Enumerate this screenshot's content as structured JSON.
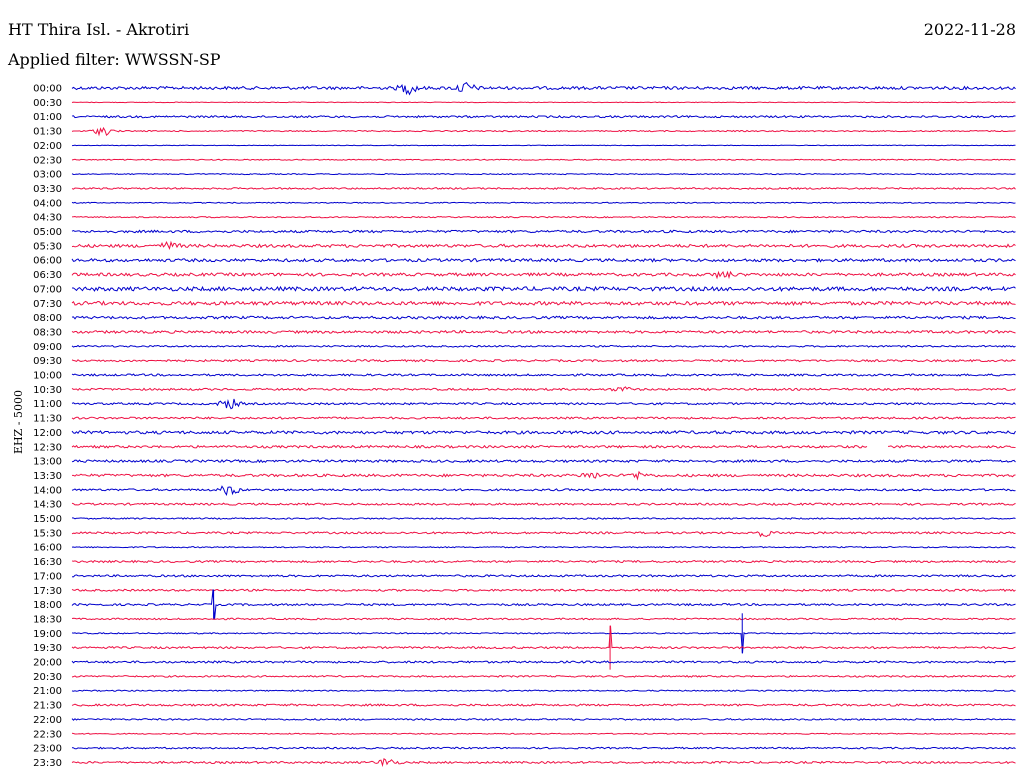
{
  "header": {
    "station": "HT Thira Isl. - Akrotiri",
    "date": "2022-11-28",
    "filter": "Applied filter: WWSSN-SP",
    "channel": "EHZ - 5000"
  },
  "chart_data": {
    "type": "line",
    "title": "HT Thira Isl. - Akrotiri",
    "colors": {
      "blue": "#0000cc",
      "red": "#ee1144"
    },
    "row_labels": [
      "00:00",
      "00:30",
      "01:00",
      "01:30",
      "02:00",
      "02:30",
      "03:00",
      "03:30",
      "04:00",
      "04:30",
      "05:00",
      "05:30",
      "06:00",
      "06:30",
      "07:00",
      "07:30",
      "08:00",
      "08:30",
      "09:00",
      "09:30",
      "10:00",
      "10:30",
      "11:00",
      "11:30",
      "12:00",
      "12:30",
      "13:00",
      "13:30",
      "14:00",
      "14:30",
      "15:00",
      "15:30",
      "16:00",
      "16:30",
      "17:00",
      "17:30",
      "18:00",
      "18:30",
      "19:00",
      "19:30",
      "20:00",
      "20:30",
      "21:00",
      "21:30",
      "22:00",
      "22:30",
      "23:00",
      "23:30"
    ],
    "noise_level": [
      1.5,
      0.3,
      1,
      0.6,
      0.3,
      0.5,
      0.5,
      0.8,
      0.5,
      0.6,
      1.2,
      1.5,
      1.5,
      1.5,
      2,
      1.8,
      1.3,
      1.3,
      0.8,
      1,
      1,
      1,
      1,
      1,
      1.5,
      1.2,
      1.2,
      1.3,
      1,
      1,
      0.7,
      1,
      0.6,
      1,
      1,
      1,
      1,
      0.8,
      0.6,
      1,
      1,
      0.8,
      0.6,
      1,
      0.8,
      0.5,
      0.8,
      1
    ],
    "events": [
      {
        "row": 0,
        "minute": 10.7,
        "amplitude": 5
      },
      {
        "row": 0,
        "minute": 12.5,
        "amplitude": 5
      },
      {
        "row": 3,
        "minute": 1,
        "amplitude": 4
      },
      {
        "row": 11,
        "minute": 3.1,
        "amplitude": 3
      },
      {
        "row": 13,
        "minute": 20.7,
        "amplitude": 3
      },
      {
        "row": 21,
        "minute": 17.5,
        "amplitude": 2
      },
      {
        "row": 22,
        "minute": 5,
        "amplitude": 5
      },
      {
        "row": 27,
        "minute": 16.5,
        "amplitude": 3
      },
      {
        "row": 27,
        "minute": 18,
        "amplitude": 3
      },
      {
        "row": 28,
        "minute": 5,
        "amplitude": 5
      },
      {
        "row": 31,
        "minute": 22,
        "amplitude": 3
      },
      {
        "row": 47,
        "minute": 10,
        "amplitude": 4
      }
    ],
    "spikes": [
      {
        "row": 36,
        "minute": 4.5,
        "amplitude": 15
      },
      {
        "row": 38,
        "minute": 21.3,
        "amplitude": 20
      },
      {
        "row": 39,
        "minute": 17.1,
        "amplitude": 22
      }
    ],
    "gaps": [
      {
        "row": 25,
        "from_minute": 25.3,
        "to_minute": 25.9
      }
    ]
  }
}
